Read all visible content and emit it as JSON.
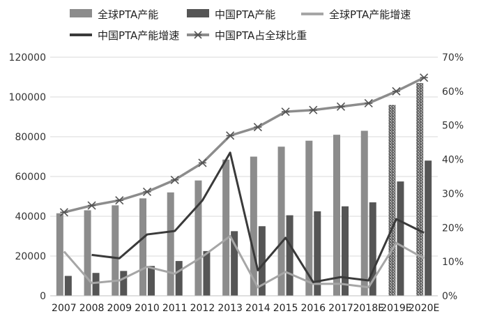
{
  "chart_data": {
    "type": "bar",
    "title": "",
    "xlabel": "",
    "ylabel": "",
    "categories": [
      "2007",
      "2008",
      "2009",
      "2010",
      "2011",
      "2012",
      "2013",
      "2014",
      "2015",
      "2016",
      "2017",
      "2018E",
      "2019E",
      "2020E"
    ],
    "ylim_left": [
      0,
      120000
    ],
    "ylim_right": [
      0,
      70
    ],
    "left_ticks": [
      "0",
      "20000",
      "40000",
      "60000",
      "80000",
      "100000",
      "120000"
    ],
    "right_ticks": [
      "0%",
      "10%",
      "20%",
      "30%",
      "40%",
      "50%",
      "60%",
      "70%"
    ],
    "grid": "horizontal",
    "legend_position": "top",
    "series": [
      {
        "name": "全球PTA产能",
        "kind": "bar",
        "axis": "left",
        "color": "#8c8c8c",
        "values": [
          41500,
          43000,
          45500,
          49000,
          52000,
          58000,
          68500,
          70000,
          75000,
          78000,
          81000,
          83000,
          96000,
          107000
        ],
        "patterned_from_index": 12
      },
      {
        "name": "中国PTA产能",
        "kind": "bar",
        "axis": "left",
        "color": "#555555",
        "values": [
          10000,
          11500,
          12500,
          15000,
          17500,
          22500,
          32500,
          35000,
          40500,
          42500,
          45000,
          47000,
          57500,
          68000
        ]
      },
      {
        "name": "全球PTA产能增速",
        "kind": "line",
        "axis": "right",
        "unit": "%",
        "color": "#a6a6a6",
        "values": [
          13,
          3.7,
          4.5,
          8.5,
          6.5,
          11.5,
          17.5,
          2.5,
          7,
          3.5,
          3.5,
          2.5,
          15.5,
          11
        ]
      },
      {
        "name": "中国PTA产能增速",
        "kind": "line",
        "axis": "right",
        "unit": "%",
        "color": "#3a3a3a",
        "values": [
          null,
          12,
          11,
          18,
          19,
          28,
          42,
          7.5,
          17,
          4,
          5.5,
          4.5,
          22.5,
          18.5
        ]
      },
      {
        "name": "中国PTA占全球比重",
        "kind": "line",
        "axis": "right",
        "unit": "%",
        "marker": "asterisk",
        "color": "#8c8c8c",
        "values": [
          24.5,
          26.5,
          28,
          30.5,
          34,
          39,
          47,
          49.5,
          54,
          54.5,
          55.5,
          56.5,
          60,
          64
        ]
      }
    ]
  }
}
